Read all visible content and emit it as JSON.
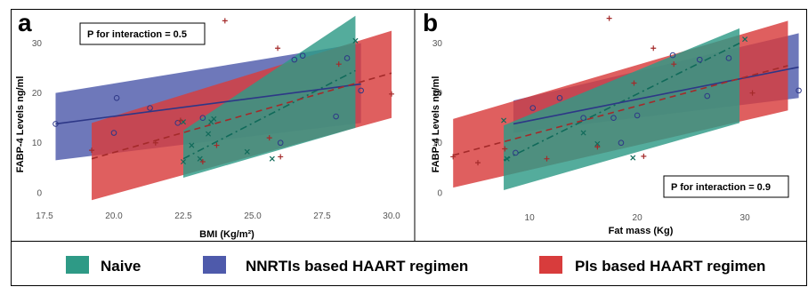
{
  "legend": {
    "items": [
      {
        "key": "naive",
        "label": "Naive",
        "color": "#2e9a86"
      },
      {
        "key": "nnrti",
        "label": "NNRTIs based HAART regimen",
        "color": "#4e5aab"
      },
      {
        "key": "pi",
        "label": "PIs based HAART regimen",
        "color": "#d83c3c"
      }
    ]
  },
  "chart_data": [
    {
      "panel": "a",
      "type": "scatter",
      "annotation": "P for interaction = 0.5",
      "xlabel": "BMI (Kg/m²)",
      "ylabel": "FABP-4 Levels ng/ml",
      "xlim": [
        17.5,
        30.0
      ],
      "ylim": [
        -2,
        36
      ],
      "xticks": [
        "17.5",
        "20.0",
        "22.5",
        "25.0",
        "27.5",
        "30.0"
      ],
      "yticks": [
        "0",
        "10",
        "20",
        "30"
      ],
      "grid": false,
      "series": [
        {
          "key": "naive",
          "marker": "x",
          "points": [
            [
              22.5,
              6.2
            ],
            [
              22.5,
              14.2
            ],
            [
              22.8,
              9.5
            ],
            [
              23.1,
              6.8
            ],
            [
              23.4,
              11.8
            ],
            [
              23.5,
              14.2
            ],
            [
              23.6,
              14.8
            ],
            [
              24.8,
              8.2
            ],
            [
              25.7,
              6.8
            ],
            [
              28.7,
              30.5
            ]
          ],
          "fit": {
            "x": [
              22.5,
              28.7
            ],
            "y": [
              6.8,
              24.5
            ],
            "ci_lower": [
              3.0,
              13.0
            ],
            "ci_upper": [
              12.5,
              35.5
            ],
            "style": "dash-dot"
          }
        },
        {
          "key": "nnrti",
          "marker": "o",
          "points": [
            [
              17.9,
              13.8
            ],
            [
              20.0,
              12.0
            ],
            [
              20.1,
              19.0
            ],
            [
              21.3,
              17.0
            ],
            [
              22.3,
              14.0
            ],
            [
              23.2,
              15.0
            ],
            [
              26.0,
              10.0
            ],
            [
              26.5,
              26.7
            ],
            [
              26.8,
              27.5
            ],
            [
              28.0,
              15.3
            ],
            [
              28.4,
              27.0
            ],
            [
              28.9,
              20.5
            ]
          ],
          "fit": {
            "x": [
              17.9,
              28.9
            ],
            "y": [
              13.8,
              21.8
            ],
            "ci_lower": [
              6.5,
              14.0
            ],
            "ci_upper": [
              20.0,
              30.0
            ],
            "style": "solid"
          }
        },
        {
          "key": "pi",
          "marker": "+",
          "points": [
            [
              19.2,
              8.5
            ],
            [
              21.5,
              10.0
            ],
            [
              22.4,
              14.5
            ],
            [
              23.2,
              6.2
            ],
            [
              23.7,
              9.5
            ],
            [
              24.0,
              34.5
            ],
            [
              25.6,
              11.0
            ],
            [
              25.9,
              29.0
            ],
            [
              26.0,
              7.2
            ],
            [
              28.1,
              25.8
            ],
            [
              30.0,
              19.8
            ]
          ],
          "fit": {
            "x": [
              19.2,
              30.0
            ],
            "y": [
              6.8,
              24.0
            ],
            "ci_lower": [
              -1.5,
              15.0
            ],
            "ci_upper": [
              14.0,
              32.5
            ],
            "style": "dashed"
          }
        }
      ]
    },
    {
      "panel": "b",
      "type": "scatter",
      "annotation": "P for interaction = 0.9",
      "xlabel": "Fat mass (Kg)",
      "ylabel": "FABP-4 Levels ng/ml",
      "xlim": [
        2.8,
        35.2
      ],
      "ylim": [
        -2,
        36
      ],
      "xticks": [
        "10",
        "20",
        "30"
      ],
      "yticks": [
        "0",
        "10",
        "20",
        "30"
      ],
      "grid": false,
      "series": [
        {
          "key": "naive",
          "marker": "x",
          "points": [
            [
              7.6,
              14.5
            ],
            [
              7.9,
              6.8
            ],
            [
              15.0,
              12.0
            ],
            [
              16.3,
              9.8
            ],
            [
              19.6,
              7.0
            ],
            [
              30.0,
              30.8
            ]
          ],
          "fit": {
            "x": [
              7.6,
              29.5
            ],
            "y": [
              6.5,
              30.0
            ],
            "ci_lower": [
              0.5,
              14.0
            ],
            "ci_upper": [
              13.5,
              33.0
            ],
            "style": "dash-dot"
          }
        },
        {
          "key": "nnrti",
          "marker": "o",
          "points": [
            [
              8.7,
              8.0
            ],
            [
              10.3,
              17.0
            ],
            [
              12.8,
              19.0
            ],
            [
              15.0,
              15.0
            ],
            [
              17.8,
              15.0
            ],
            [
              18.5,
              10.0
            ],
            [
              20.0,
              15.5
            ],
            [
              23.3,
              27.6
            ],
            [
              25.8,
              26.7
            ],
            [
              26.5,
              19.4
            ],
            [
              28.5,
              27.0
            ],
            [
              35.0,
              20.5
            ]
          ],
          "fit": {
            "x": [
              8.5,
              35.0
            ],
            "y": [
              13.8,
              25.2
            ],
            "ci_lower": [
              12.0,
              19.0
            ],
            "ci_upper": [
              18.5,
              32.0
            ],
            "style": "solid"
          }
        },
        {
          "key": "pi",
          "marker": "+",
          "points": [
            [
              2.9,
              7.2
            ],
            [
              5.2,
              6.0
            ],
            [
              7.7,
              8.8
            ],
            [
              11.6,
              6.8
            ],
            [
              16.3,
              9.2
            ],
            [
              17.4,
              35.0
            ],
            [
              19.7,
              22.0
            ],
            [
              20.6,
              7.3
            ],
            [
              21.5,
              29.0
            ],
            [
              23.4,
              25.8
            ],
            [
              30.7,
              20.0
            ]
          ],
          "fit": {
            "x": [
              2.9,
              34.0
            ],
            "y": [
              7.5,
              25.5
            ],
            "ci_lower": [
              1.0,
              16.5
            ],
            "ci_upper": [
              14.8,
              34.5
            ],
            "style": "dashed"
          }
        }
      ]
    }
  ]
}
